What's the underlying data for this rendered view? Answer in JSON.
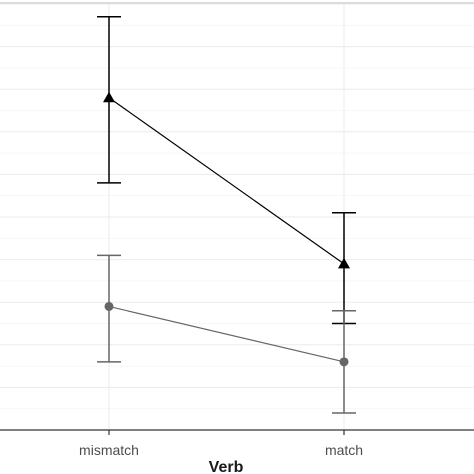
{
  "chart_data": {
    "type": "line",
    "categories": [
      "mismatch",
      "match"
    ],
    "xlabel": "Verb",
    "ylabel": "",
    "ylim": [
      0,
      10
    ],
    "grid": true,
    "legend": "none",
    "series": [
      {
        "marker": "triangle",
        "color": "#000000",
        "values": [
          7.8,
          3.9
        ],
        "error_low": [
          5.8,
          2.5
        ],
        "error_high": [
          9.7,
          5.1
        ]
      },
      {
        "marker": "circle",
        "color": "#666666",
        "values": [
          2.9,
          1.6
        ],
        "error_low": [
          1.6,
          0.4
        ],
        "error_high": [
          4.1,
          2.8
        ]
      }
    ]
  }
}
